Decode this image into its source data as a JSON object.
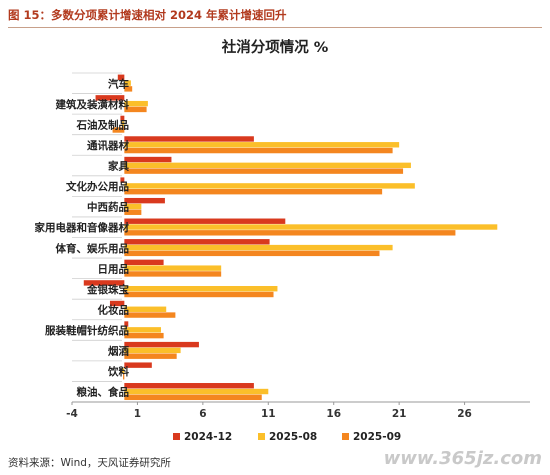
{
  "figure_title": "图 15：多数分项累计增速相对 2024 年累计增速回升",
  "source": "资料来源：Wind，天风证券研究所",
  "watermark": "www.365jz.com",
  "chart_data": {
    "type": "bar",
    "orientation": "horizontal",
    "title": "社消分项情况 %",
    "xlim": [
      -4,
      31
    ],
    "xticks": [
      -4,
      1,
      6,
      11,
      16,
      21,
      26
    ],
    "grid": false,
    "legend_position": "bottom",
    "categories": [
      "汽车",
      "建筑及装潢材料",
      "石油及制品",
      "通讯器材",
      "家具",
      "文化办公用品",
      "中西药品",
      "家用电器和音像器材",
      "体育、娱乐用品",
      "日用品",
      "金银珠宝",
      "化妆品",
      "服装鞋帽针纺织品",
      "烟酒",
      "饮料",
      "粮油、食品"
    ],
    "series": [
      {
        "name": "2024-12",
        "color": "#d9391e",
        "values": [
          -0.5,
          -2.2,
          -0.3,
          9.9,
          3.6,
          -0.3,
          3.1,
          12.3,
          11.1,
          3.0,
          -3.1,
          -1.1,
          0.3,
          5.7,
          2.1,
          9.9
        ]
      },
      {
        "name": "2025-08",
        "color": "#fbbf2a",
        "values": [
          0.5,
          1.8,
          -0.2,
          21.0,
          21.9,
          22.2,
          1.3,
          28.5,
          20.5,
          7.4,
          11.7,
          3.2,
          2.8,
          4.3,
          -0.2,
          11.0
        ]
      },
      {
        "name": "2025-09",
        "color": "#f4861f",
        "values": [
          0.6,
          1.7,
          -0.9,
          20.5,
          21.3,
          19.7,
          1.3,
          25.3,
          19.5,
          7.4,
          11.4,
          3.9,
          3.0,
          4.0,
          -0.1,
          10.5
        ]
      }
    ]
  }
}
